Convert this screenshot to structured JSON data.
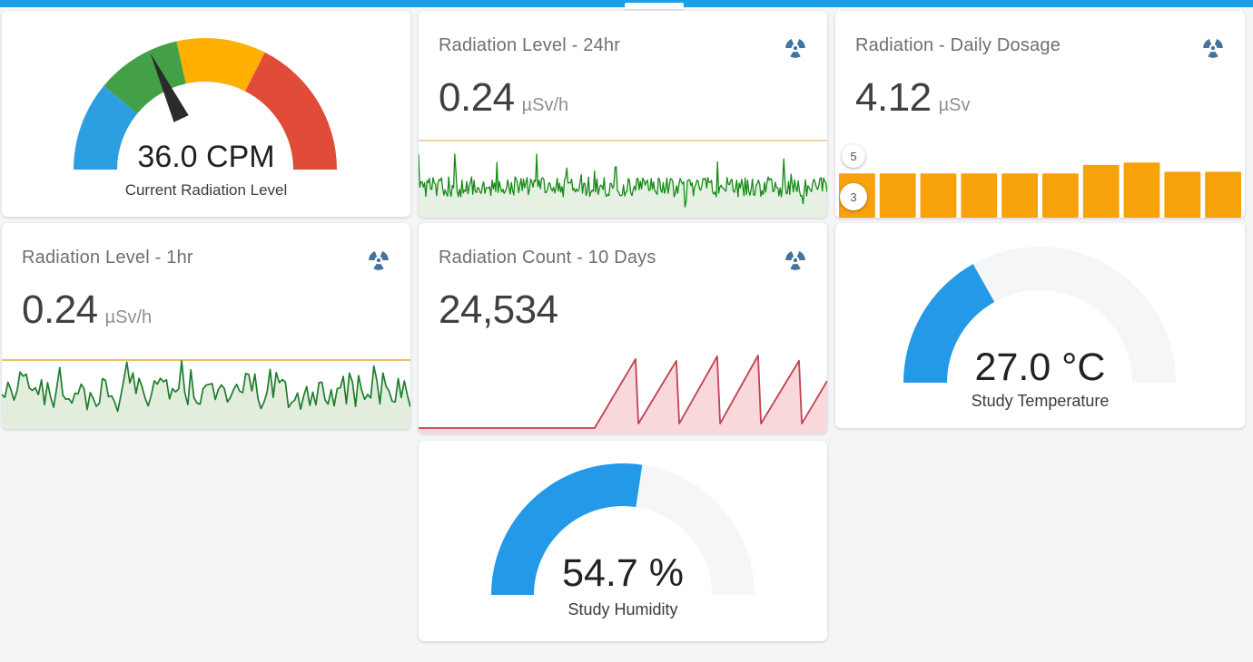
{
  "page": {
    "topbar_color": "#18a0e9",
    "background": "#f4f5f6",
    "icon_color": "#44739e"
  },
  "cards": {
    "current_radiation": {
      "value_text": "36.0 CPM",
      "label": "Current Radiation Level",
      "chart_data": {
        "type": "gauge",
        "value": 36.0,
        "min": 0,
        "max": 100,
        "unit": "CPM",
        "needle_color": "#2b2b2b",
        "segments": [
          {
            "from": 0,
            "to": 22,
            "color": "#2D9FE0"
          },
          {
            "from": 22,
            "to": 43,
            "color": "#43A047"
          },
          {
            "from": 43,
            "to": 65,
            "color": "#FFB000"
          },
          {
            "from": 65,
            "to": 100,
            "color": "#E14B39"
          }
        ]
      }
    },
    "radiation_24hr": {
      "title": "Radiation Level - 24hr",
      "value": "0.24",
      "unit": "µSv/h",
      "icon": "radioactive-icon",
      "chart_data": {
        "type": "line",
        "summary": "dense high-frequency noise around 0.24 µSv/h over 24 hours, below an orange threshold line",
        "mean": 0.24,
        "n_points": 340,
        "color": "#168A16",
        "fill_color": "#E6F0E3",
        "threshold_color": "#E8C87E"
      }
    },
    "daily_dosage": {
      "title": "Radiation - Daily Dosage",
      "value": "4.12",
      "unit": "µSv",
      "icon": "radioactive-icon",
      "chart_data": {
        "type": "bar",
        "values": [
          4.1,
          4.1,
          4.1,
          4.1,
          4.1,
          4.1,
          4.35,
          4.42,
          4.15,
          4.15
        ],
        "ymin": 2.8,
        "ymax": 5.2,
        "axis_max_badge": "5",
        "axis_min_badge": "3",
        "color": "#F7A10B"
      }
    },
    "radiation_1hr": {
      "title": "Radiation Level - 1hr",
      "value": "0.24",
      "unit": "µSv/h",
      "icon": "radioactive-icon",
      "chart_data": {
        "type": "line",
        "summary": "noisy signal around 0.24 µSv/h over 1 hour, one spike touching the orange threshold line",
        "mean": 0.24,
        "n_points": 135,
        "color": "#1E7D2C",
        "fill_color": "#E2EDDD",
        "threshold_color": "#ECA92B"
      }
    },
    "count_10days": {
      "title": "Radiation Count - 10 Days",
      "value": "24,534",
      "icon": "radioactive-icon",
      "chart_data": {
        "type": "area",
        "summary": "daily cumulative count sawtooth: flat near zero for ~4.3 days then 5 ramp-and-reset teeth plus a final rising ramp",
        "max_count": 3100,
        "points": [
          [
            0.0,
            0
          ],
          [
            0.431,
            0
          ],
          [
            0.531,
            2950
          ],
          [
            0.538,
            190
          ],
          [
            0.631,
            2870
          ],
          [
            0.638,
            190
          ],
          [
            0.731,
            3060
          ],
          [
            0.738,
            190
          ],
          [
            0.831,
            3100
          ],
          [
            0.838,
            190
          ],
          [
            0.931,
            2870
          ],
          [
            0.938,
            190
          ],
          [
            1.0,
            2010
          ]
        ],
        "color": "#C14250",
        "fill_color": "#F8D8DA"
      }
    },
    "study_temperature": {
      "value_text": "27.0 °C",
      "label": "Study Temperature",
      "chart_data": {
        "type": "gauge",
        "value": 27.0,
        "min": 0,
        "max": 80,
        "unit": "°C",
        "fill_color": "#2399E8",
        "track_color": "#F5F6F7"
      }
    },
    "study_humidity": {
      "value_text": "54.7 %",
      "label": "Study Humidity",
      "chart_data": {
        "type": "gauge",
        "value": 54.7,
        "min": 0,
        "max": 100,
        "unit": "%",
        "fill_color": "#2399E8",
        "track_color": "#F5F6F7"
      }
    }
  }
}
